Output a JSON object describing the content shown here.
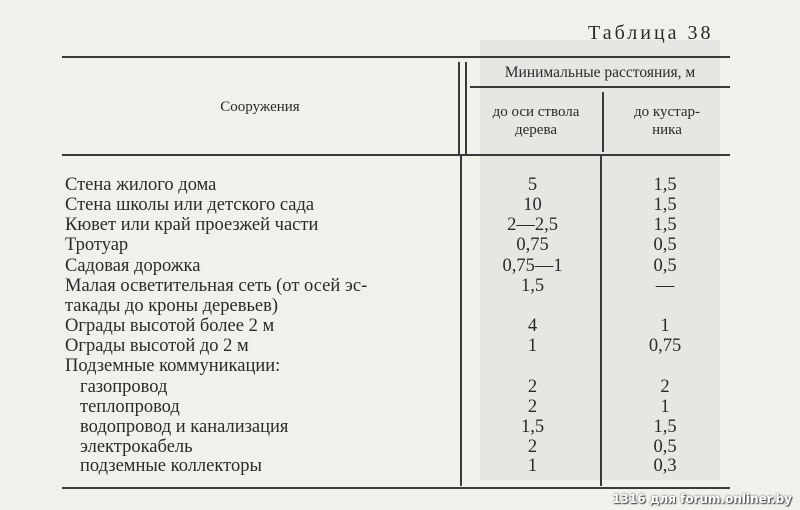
{
  "title": "Таблица 38",
  "header": {
    "structure": "Сооружения",
    "group": "Минимальные расстояния, м",
    "col_tree": "до оси ствола дерева",
    "col_tree_l1": "до оси ствола",
    "col_tree_l2": "дерева",
    "col_shrub_l1": "до кустар-",
    "col_shrub_l2": "ника"
  },
  "rows": [
    {
      "name": "Стена жилого дома",
      "tree": "5",
      "shrub": "1,5"
    },
    {
      "name": "Стена школы или детского сада",
      "tree": "10",
      "shrub": "1,5"
    },
    {
      "name": "Кювет или край проезжей части",
      "tree": "2—2,5",
      "shrub": "1,5"
    },
    {
      "name": "Тротуар",
      "tree": "0,75",
      "shrub": "0,5"
    },
    {
      "name": "Садовая дорожка",
      "tree": "0,75—1",
      "shrub": "0,5"
    },
    {
      "name": "Малая осветительная сеть (от осей эс-",
      "tree": "1,5",
      "shrub": "—"
    },
    {
      "name": "такады до кроны деревьев)",
      "tree": "",
      "shrub": ""
    },
    {
      "name": "Ограды высотой более 2 м",
      "tree": "4",
      "shrub": "1"
    },
    {
      "name": "Ограды высотой до 2 м",
      "tree": "1",
      "shrub": "0,75"
    },
    {
      "name": "Подземные коммуникации:",
      "tree": "",
      "shrub": ""
    },
    {
      "name": "газопровод",
      "tree": "2",
      "shrub": "2"
    },
    {
      "name": "теплопровод",
      "tree": "2",
      "shrub": "1"
    },
    {
      "name": "водопровод и канализация",
      "tree": "1,5",
      "shrub": "1,5"
    },
    {
      "name": "электрокабель",
      "tree": "2",
      "shrub": "0,5"
    },
    {
      "name": "подземные коллекторы",
      "tree": "1",
      "shrub": "0,3"
    }
  ],
  "watermark": "1316 для forum.onliner.by"
}
